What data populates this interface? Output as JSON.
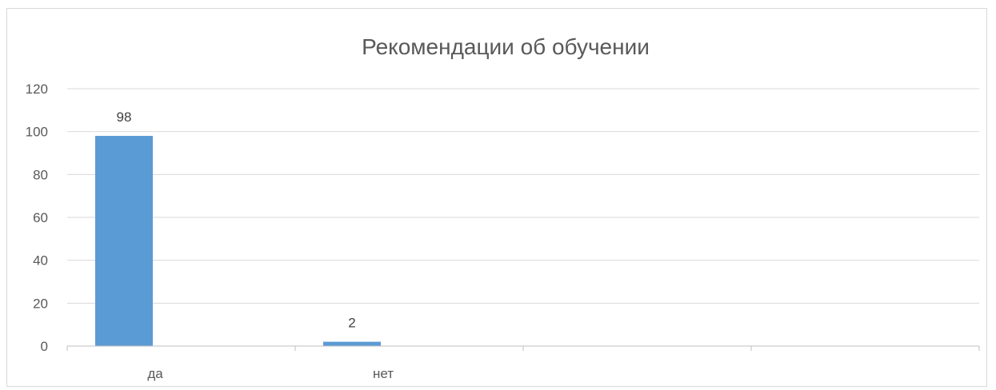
{
  "chart_data": {
    "type": "bar",
    "title": "Рекомендации об обучении",
    "categories": [
      "да",
      "нет",
      "",
      ""
    ],
    "series": [
      {
        "values": [
          98,
          2,
          null,
          null
        ]
      }
    ],
    "data_labels": [
      "98",
      "2",
      "",
      ""
    ],
    "ylim": [
      0,
      120
    ],
    "yticks": [
      0,
      20,
      40,
      60,
      80,
      100,
      120
    ],
    "ytick_labels": [
      "0",
      "20",
      "40",
      "60",
      "80",
      "100",
      "120"
    ],
    "grid": true,
    "legend": "none",
    "bar_color": "#5b9bd5",
    "gridline_color": "#d9d9d9",
    "axis_color": "#bfbfbf"
  }
}
